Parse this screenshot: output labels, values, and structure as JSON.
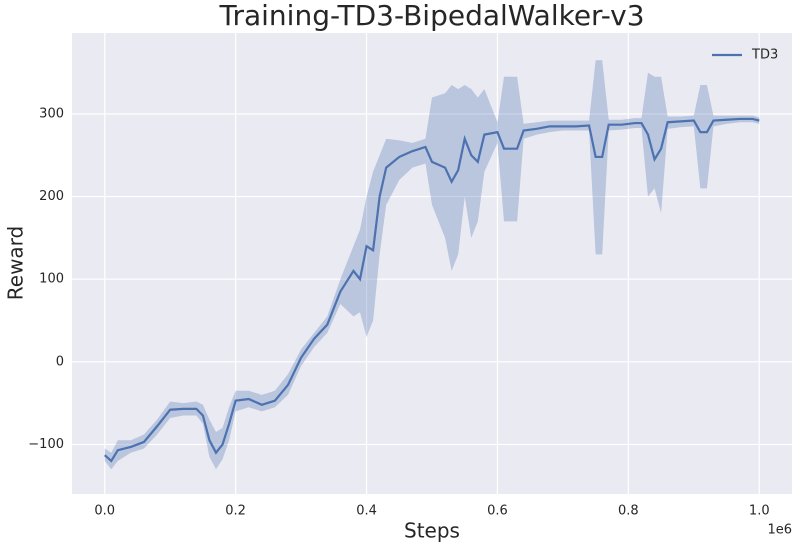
{
  "chart_data": {
    "type": "line",
    "title": "Training-TD3-BipedalWalker-v3",
    "x_label": "Steps",
    "y_label": "Reward",
    "x_offset_label": "1e6",
    "x": [
      0.0,
      0.01,
      0.02,
      0.04,
      0.06,
      0.08,
      0.1,
      0.12,
      0.14,
      0.15,
      0.16,
      0.17,
      0.18,
      0.19,
      0.2,
      0.22,
      0.24,
      0.26,
      0.28,
      0.3,
      0.32,
      0.34,
      0.36,
      0.38,
      0.39,
      0.4,
      0.41,
      0.42,
      0.43,
      0.45,
      0.47,
      0.49,
      0.5,
      0.52,
      0.53,
      0.54,
      0.55,
      0.56,
      0.57,
      0.58,
      0.6,
      0.61,
      0.63,
      0.64,
      0.66,
      0.68,
      0.7,
      0.72,
      0.74,
      0.75,
      0.76,
      0.77,
      0.79,
      0.81,
      0.82,
      0.83,
      0.84,
      0.85,
      0.86,
      0.88,
      0.9,
      0.91,
      0.92,
      0.93,
      0.95,
      0.97,
      0.99,
      1.0
    ],
    "series": [
      {
        "name": "TD3",
        "color": "#4c72b0",
        "values": [
          -113,
          -120,
          -107,
          -103,
          -97,
          -78,
          -58,
          -57,
          -57,
          -65,
          -95,
          -110,
          -100,
          -75,
          -47,
          -45,
          -52,
          -47,
          -28,
          5,
          28,
          45,
          85,
          110,
          100,
          140,
          135,
          200,
          235,
          248,
          255,
          260,
          242,
          235,
          218,
          232,
          270,
          250,
          242,
          275,
          278,
          258,
          258,
          280,
          282,
          285,
          285,
          285,
          286,
          248,
          248,
          287,
          287,
          289,
          289,
          275,
          245,
          258,
          290,
          291,
          292,
          278,
          278,
          292,
          293,
          294,
          294,
          292
        ],
        "lower": [
          -120,
          -130,
          -120,
          -110,
          -105,
          -88,
          -68,
          -65,
          -65,
          -75,
          -115,
          -130,
          -118,
          -95,
          -60,
          -55,
          -60,
          -55,
          -40,
          -5,
          18,
          35,
          70,
          55,
          60,
          30,
          50,
          130,
          190,
          220,
          235,
          240,
          190,
          150,
          110,
          130,
          200,
          150,
          170,
          230,
          265,
          170,
          170,
          270,
          275,
          278,
          280,
          280,
          280,
          130,
          130,
          280,
          281,
          283,
          283,
          200,
          210,
          180,
          282,
          284,
          285,
          210,
          210,
          285,
          288,
          290,
          290,
          288
        ],
        "upper": [
          -105,
          -110,
          -95,
          -95,
          -88,
          -70,
          -48,
          -50,
          -48,
          -52,
          -70,
          -85,
          -80,
          -55,
          -35,
          -35,
          -40,
          -35,
          -15,
          15,
          35,
          55,
          100,
          140,
          160,
          200,
          230,
          250,
          270,
          268,
          265,
          270,
          320,
          325,
          335,
          330,
          335,
          330,
          320,
          330,
          290,
          345,
          345,
          288,
          290,
          292,
          292,
          292,
          292,
          365,
          365,
          293,
          293,
          295,
          295,
          350,
          345,
          345,
          297,
          297,
          298,
          335,
          335,
          298,
          298,
          298,
          298,
          296
        ]
      }
    ],
    "xlim": [
      -0.05,
      1.05
    ],
    "ylim": [
      -160,
      398
    ],
    "xticks": [
      {
        "value": 0,
        "label": "0.0"
      },
      {
        "value": 0.2,
        "label": "0.2"
      },
      {
        "value": 0.4,
        "label": "0.4"
      },
      {
        "value": 0.6,
        "label": "0.6"
      },
      {
        "value": 0.8,
        "label": "0.8"
      },
      {
        "value": 1,
        "label": "1.0"
      }
    ],
    "yticks": [
      {
        "value": -100,
        "label": "−100"
      },
      0,
      100,
      200,
      300
    ],
    "grid": true,
    "legend": "upper right"
  }
}
